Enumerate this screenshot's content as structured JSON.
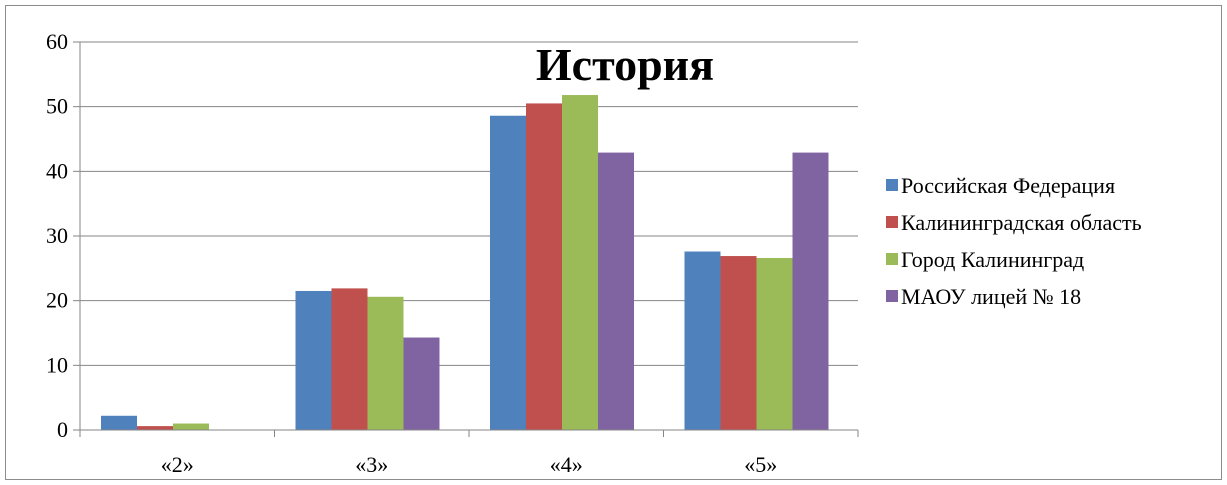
{
  "chart_data": {
    "type": "bar",
    "title": "История",
    "categories": [
      "«2»",
      "«3»",
      "«4»",
      "«5»"
    ],
    "series": [
      {
        "name": "Российская Федерация",
        "color": "#4f81bd",
        "values": [
          2.2,
          21.5,
          48.6,
          27.6
        ]
      },
      {
        "name": "Калининградская область",
        "color": "#c0504d",
        "values": [
          0.6,
          21.9,
          50.5,
          26.9
        ]
      },
      {
        "name": "Город Калининград",
        "color": "#9bbb59",
        "values": [
          1.0,
          20.6,
          51.8,
          26.6
        ]
      },
      {
        "name": "МАОУ лицей № 18",
        "color": "#8064a2",
        "values": [
          0,
          14.3,
          42.9,
          42.9
        ]
      }
    ],
    "yticks": [
      "0",
      "10",
      "20",
      "30",
      "40",
      "50",
      "60"
    ],
    "ylim": [
      0,
      60
    ],
    "grid": true,
    "legend_position": "right"
  }
}
